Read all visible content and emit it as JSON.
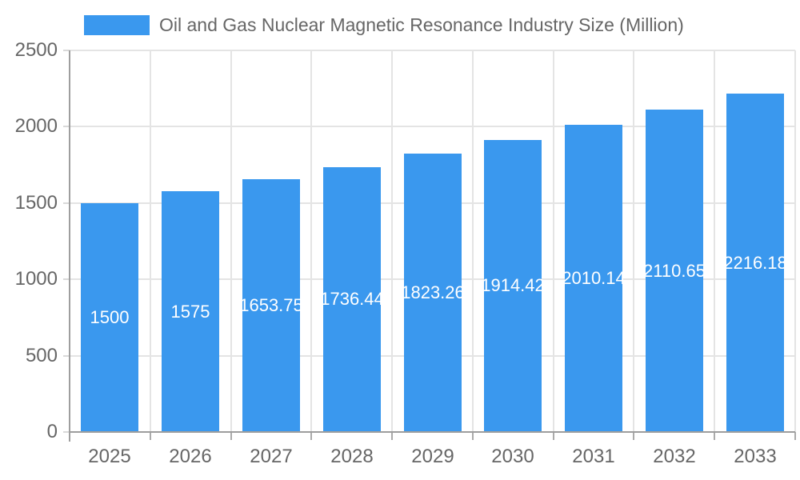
{
  "chart_data": {
    "type": "bar",
    "title": "Oil and Gas Nuclear Magnetic Resonance Industry Size (Million)",
    "categories": [
      "2025",
      "2026",
      "2027",
      "2028",
      "2029",
      "2030",
      "2031",
      "2032",
      "2033"
    ],
    "values": [
      1500,
      1575,
      1653.75,
      1736.44,
      1823.26,
      1914.42,
      2010.14,
      2110.65,
      2216.18
    ],
    "value_labels": [
      "1500",
      "1575",
      "1653.75",
      "1736.44",
      "1823.26",
      "1914.42",
      "2010.14",
      "2110.65",
      "2216.18"
    ],
    "xlabel": "",
    "ylabel": "",
    "ylim": [
      0,
      2500
    ],
    "y_ticks": [
      "0",
      "500",
      "1000",
      "1500",
      "2000",
      "2500"
    ],
    "y_tick_values": [
      0,
      500,
      1000,
      1500,
      2000,
      2500
    ],
    "grid": true,
    "legend_position": "top-left",
    "colors": {
      "bar": "#3A98EE",
      "value_label": "#FFFFFF",
      "axis_line": "#9E9E9E",
      "grid_line": "#E4E4E4",
      "x_tick_mark": "#ABABAB",
      "y_tick_mark": "#D9D9D9",
      "tick_text": "#666666",
      "title_text": "#666666",
      "background": "#FFFFFF"
    }
  }
}
